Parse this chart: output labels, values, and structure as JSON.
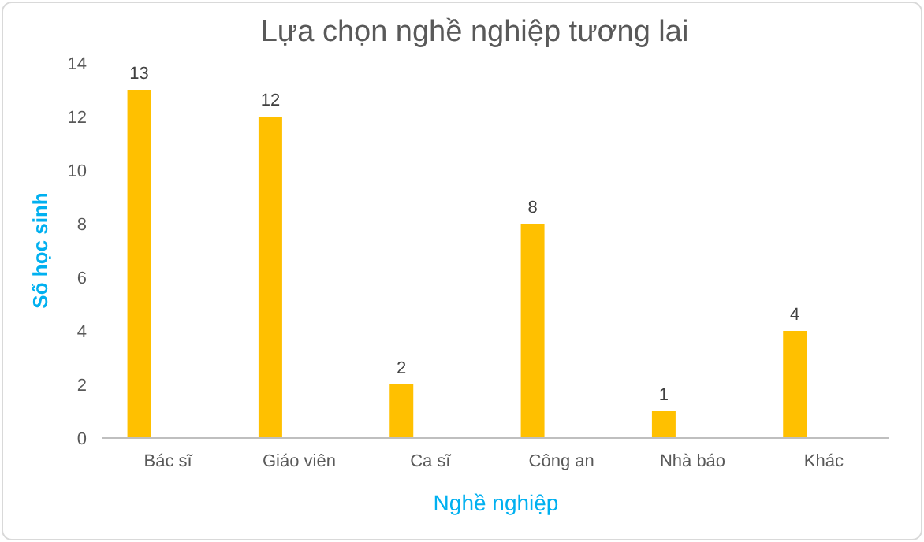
{
  "chart_data": {
    "type": "bar",
    "title": "Lựa chọn nghề nghiệp tương lai",
    "xlabel": "Nghề nghiệp",
    "ylabel": "Số học sinh",
    "categories": [
      "Bác sĩ",
      "Giáo viên",
      "Ca sĩ",
      "Công an",
      "Nhà báo",
      "Khác"
    ],
    "values": [
      13,
      12,
      2,
      8,
      1,
      4
    ],
    "color": "#ffc000",
    "ylim": [
      0,
      14
    ],
    "yticks": [
      0,
      2,
      4,
      6,
      8,
      10,
      12,
      14
    ],
    "grid": false,
    "data_labels": true
  }
}
